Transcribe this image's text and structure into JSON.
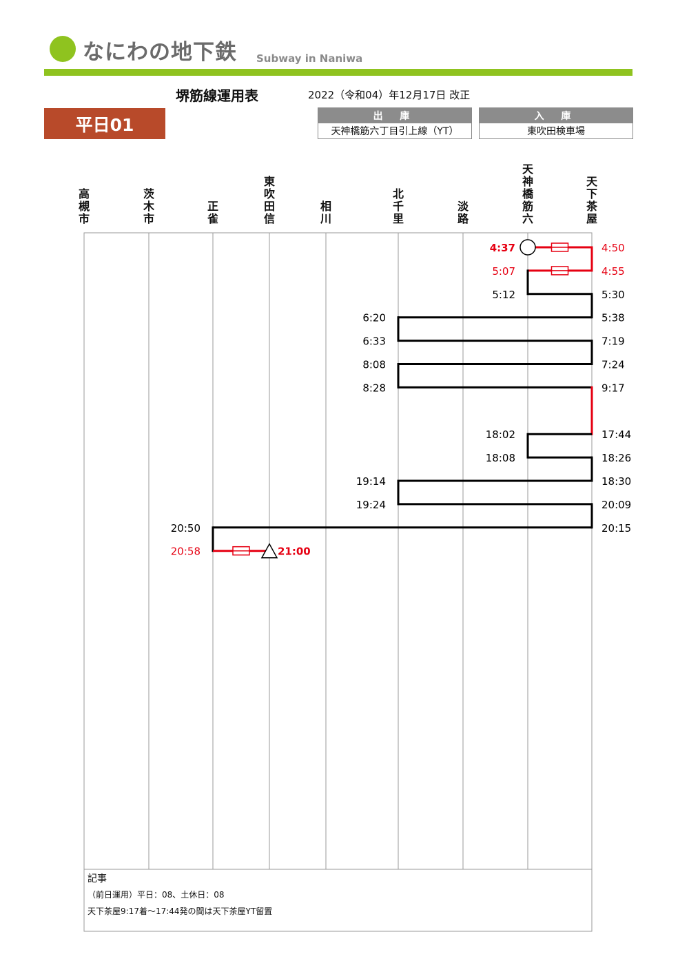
{
  "brand": {
    "name": "なにわの地下鉄",
    "subtitle": "Subway in Naniwa",
    "color": "#8fc31f"
  },
  "header": {
    "title": "堺筋線運用表",
    "revision": "2022（令和04）年12月17日 改正",
    "run_id": "平日01",
    "depart": {
      "label": "出 庫",
      "value": "天神橋筋六丁目引上線（YT）"
    },
    "arrive": {
      "label": "入 庫",
      "value": "東吹田検車場"
    }
  },
  "stations": [
    "高槻市",
    "茨木市",
    "正雀",
    "東吹田信",
    "相川",
    "北千里",
    "淡路",
    "天神橋筋六",
    "天下茶屋"
  ],
  "colors": {
    "revenue": "#000000",
    "deadhead": "#e60012",
    "accent": "#b84a2a"
  },
  "diagram": {
    "legs": [
      {
        "from": 7,
        "dep": "4:37",
        "to": 8,
        "arr": "4:50",
        "deadhead": true
      },
      {
        "from": 8,
        "dep": "4:55",
        "to": 7,
        "arr": "5:07",
        "deadhead": true
      },
      {
        "from": 7,
        "dep": "5:12",
        "to": 8,
        "arr": "5:30",
        "deadhead": false
      },
      {
        "from": 8,
        "dep": "5:38",
        "to": 5,
        "arr": "6:20",
        "deadhead": false
      },
      {
        "from": 5,
        "dep": "6:33",
        "to": 8,
        "arr": "7:19",
        "deadhead": false
      },
      {
        "from": 8,
        "dep": "7:24",
        "to": 5,
        "arr": "8:08",
        "deadhead": false
      },
      {
        "from": 5,
        "dep": "8:28",
        "to": 8,
        "arr": "9:17",
        "deadhead": false
      },
      {
        "from": 8,
        "dep": "17:44",
        "to": 7,
        "arr": "18:02",
        "deadhead": false
      },
      {
        "from": 7,
        "dep": "18:08",
        "to": 8,
        "arr": "18:26",
        "deadhead": false
      },
      {
        "from": 8,
        "dep": "18:30",
        "to": 5,
        "arr": "19:14",
        "deadhead": false
      },
      {
        "from": 5,
        "dep": "19:24",
        "to": 8,
        "arr": "20:09",
        "deadhead": false
      },
      {
        "from": 8,
        "dep": "20:15",
        "to": 2,
        "arr": "20:50",
        "deadhead": false
      },
      {
        "from": 2,
        "dep": "20:58",
        "to": 3,
        "arr": "21:00",
        "deadhead": true
      }
    ],
    "start_station": 7,
    "end_station": 3
  },
  "notes": {
    "label": "記事",
    "lines": [
      "（前日運用）平日：08、土休日：08",
      "天下茶屋9:17着〜17:44発の間は天下茶屋YT留置"
    ]
  }
}
